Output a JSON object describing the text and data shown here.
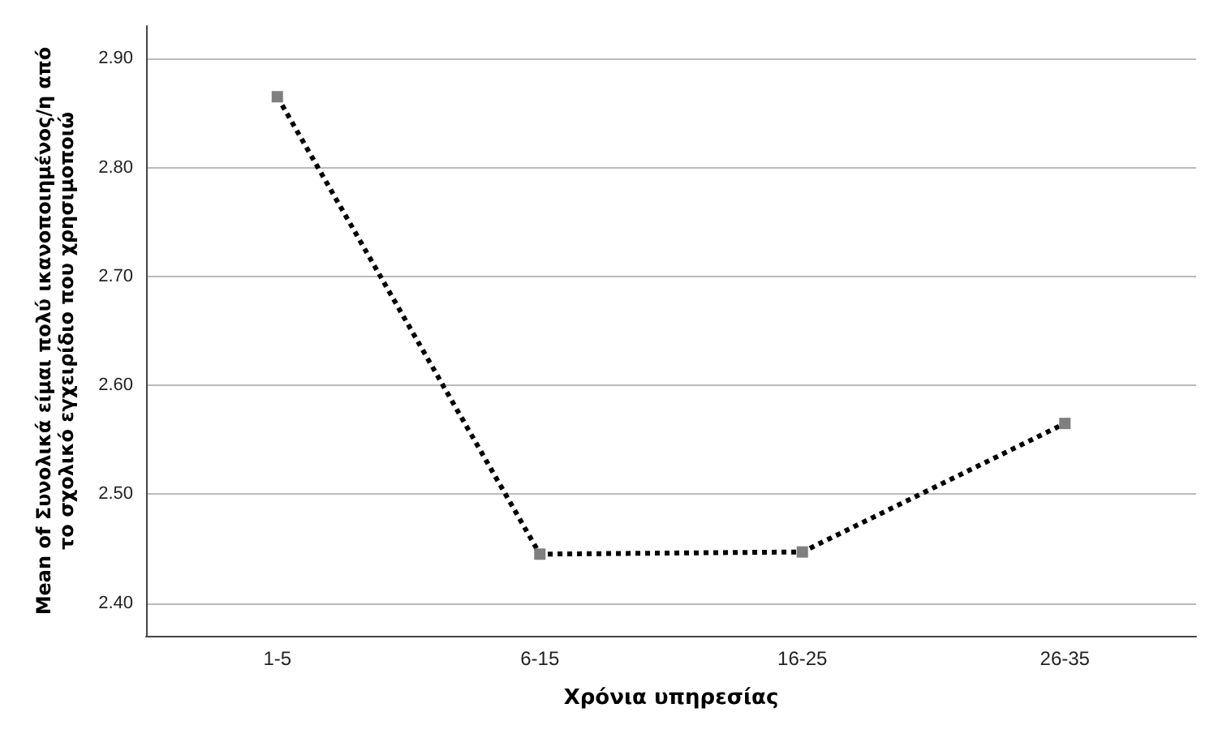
{
  "chart_data": {
    "type": "line",
    "xlabel": "Χρόνια υπηρεσίας",
    "ylabel": "Mean of Συνολικά είμαι πολύ ικανοποιημένος/η από\nτο σχολικό εγχειρίδιο που χρησιμοποιώ",
    "categories": [
      "1-5",
      "6-15",
      "16-25",
      "26-35"
    ],
    "series": [
      {
        "color": "#000000",
        "values": [
          2.865,
          2.445,
          2.447,
          2.565
        ]
      }
    ],
    "ylim": [
      2.37,
      2.93
    ],
    "yticks": [
      {
        "value": 2.4,
        "label": "2.40"
      },
      {
        "value": 2.5,
        "label": "2.50"
      },
      {
        "value": 2.6,
        "label": "2.60"
      },
      {
        "value": 2.7,
        "label": "2.70"
      },
      {
        "value": 2.8,
        "label": "2.80"
      },
      {
        "value": 2.9,
        "label": "2.90"
      }
    ],
    "grid": "y",
    "marker": "square",
    "line_style": "dotted"
  }
}
